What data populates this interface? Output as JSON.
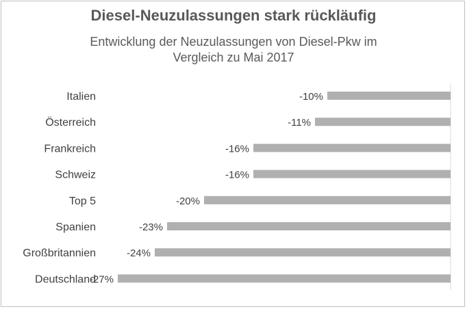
{
  "chart_data": {
    "type": "bar",
    "orientation": "horizontal",
    "title": "Diesel-Neuzulassungen stark rückläufig",
    "subtitle_lines": [
      "Entwicklung der Neuzulassungen  von Diesel-Pkw im",
      "Vergleich zu Mai 2017"
    ],
    "categories": [
      "Italien",
      "Österreich",
      "Frankreich",
      "Schweiz",
      "Top 5",
      "Spanien",
      "Großbritannien",
      "Deutschland"
    ],
    "values": [
      -10,
      -11,
      -16,
      -16,
      -20,
      -23,
      -24,
      -27
    ],
    "value_labels": [
      "-10%",
      "-11%",
      "-16%",
      "-16%",
      "-20%",
      "-23%",
      "-24%",
      "-27%"
    ],
    "unit": "%",
    "xlim": [
      -30,
      0
    ],
    "bar_color": "#b0b0b0",
    "axis_color": "#d9d9d9",
    "grid": false,
    "legend": "none"
  }
}
